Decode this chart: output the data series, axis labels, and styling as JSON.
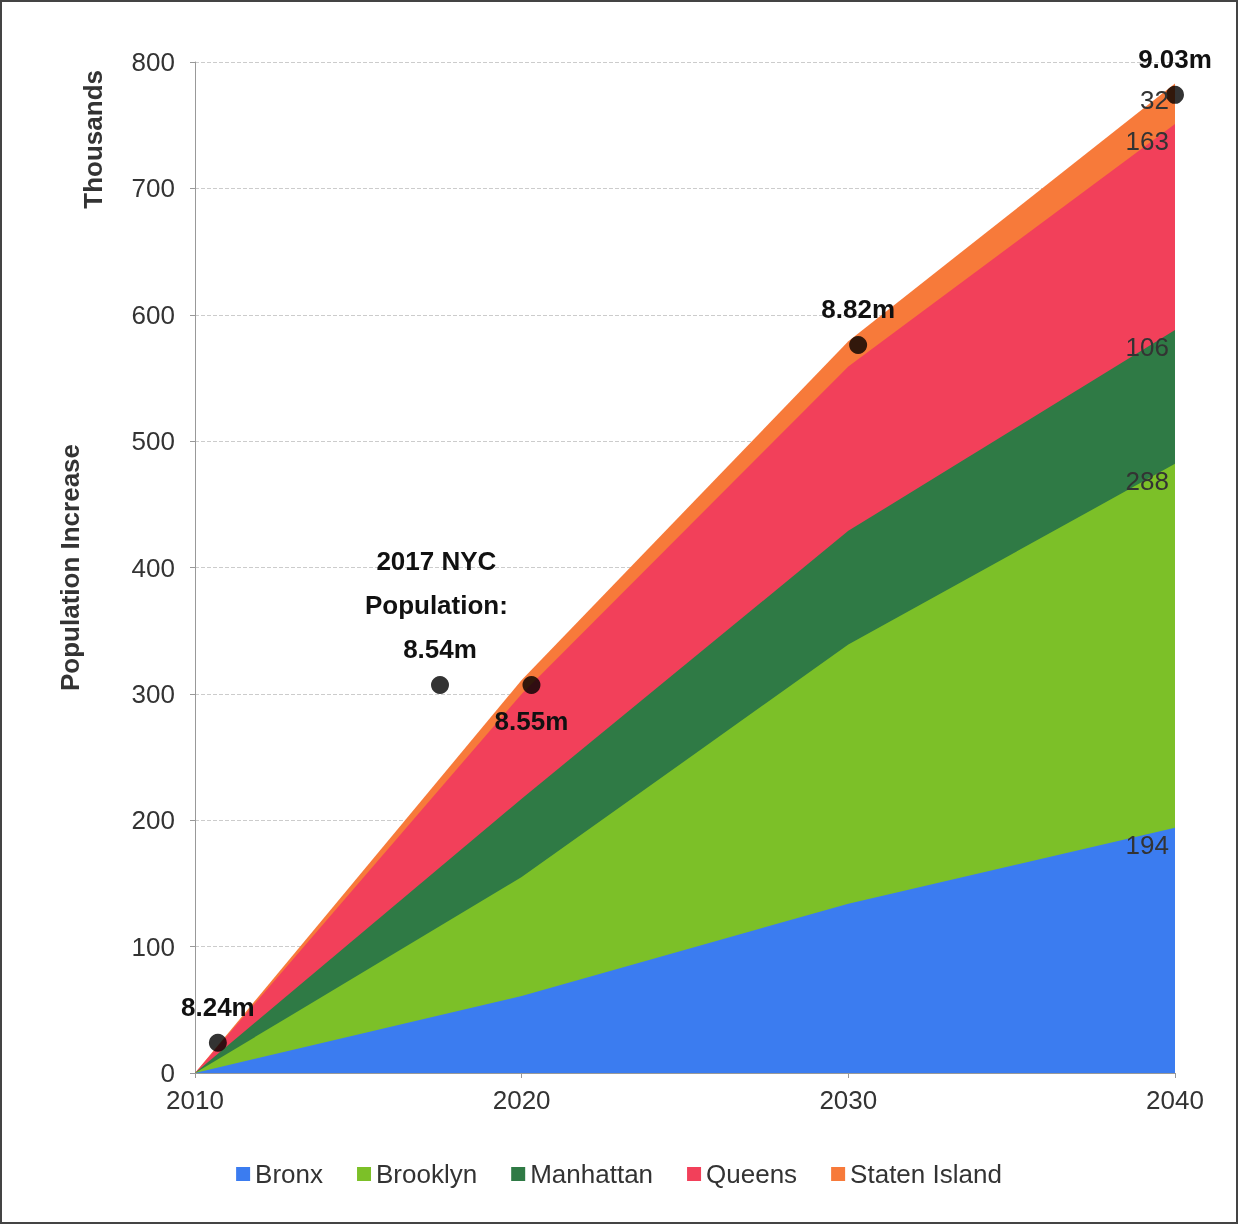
{
  "chart_data": {
    "type": "area",
    "stacked": true,
    "ylabel": "Population Increase",
    "x": [
      2010,
      2020,
      2030,
      2040
    ],
    "series": [
      {
        "name": "Bronx",
        "color": "#3b7cf0",
        "values": [
          0,
          61,
          134,
          194
        ],
        "value_labels": [
          null,
          null,
          null,
          "194"
        ]
      },
      {
        "name": "Brooklyn",
        "color": "#7cc028",
        "values": [
          0,
          94,
          205,
          288
        ],
        "value_labels": [
          null,
          null,
          null,
          "288"
        ]
      },
      {
        "name": "Manhattan",
        "color": "#2f7a45",
        "values": [
          0,
          62,
          90,
          106
        ],
        "value_labels": [
          null,
          null,
          null,
          "106"
        ]
      },
      {
        "name": "Queens",
        "color": "#f2405a",
        "values": [
          0,
          83,
          130,
          163
        ],
        "value_labels": [
          null,
          null,
          null,
          "163"
        ]
      },
      {
        "name": "Staten Island",
        "color": "#f77a3a",
        "values": [
          0,
          11,
          20,
          32
        ],
        "value_labels": [
          null,
          null,
          null,
          "32"
        ]
      },
      {
        "type": "scatter",
        "color": "#000000",
        "x": [
          2010.7,
          2017.5,
          2020.3,
          2030.3,
          2040
        ],
        "values": [
          24,
          307,
          307,
          576,
          774
        ]
      }
    ],
    "annotations": [
      "Thousands",
      {
        "text": "8.24m",
        "x": 2010.7,
        "y": 24
      },
      {
        "text": "2017 NYC Population: 8.54m",
        "x": 2017.5,
        "y": 307
      },
      {
        "text": "8.55m",
        "x": 2020.3,
        "y": 307
      },
      {
        "text": "8.82m",
        "x": 2030.3,
        "y": 576
      },
      {
        "text": "9.03m",
        "x": 2040,
        "y": 774
      }
    ],
    "xlim": [
      2010,
      2040
    ],
    "xticks": [
      2010,
      2020,
      2030,
      2040
    ],
    "ylim": [
      0,
      800
    ],
    "yticks": [
      0,
      100,
      200,
      300,
      400,
      500,
      600,
      700,
      800
    ],
    "grid": "y",
    "legend": "bottom"
  }
}
